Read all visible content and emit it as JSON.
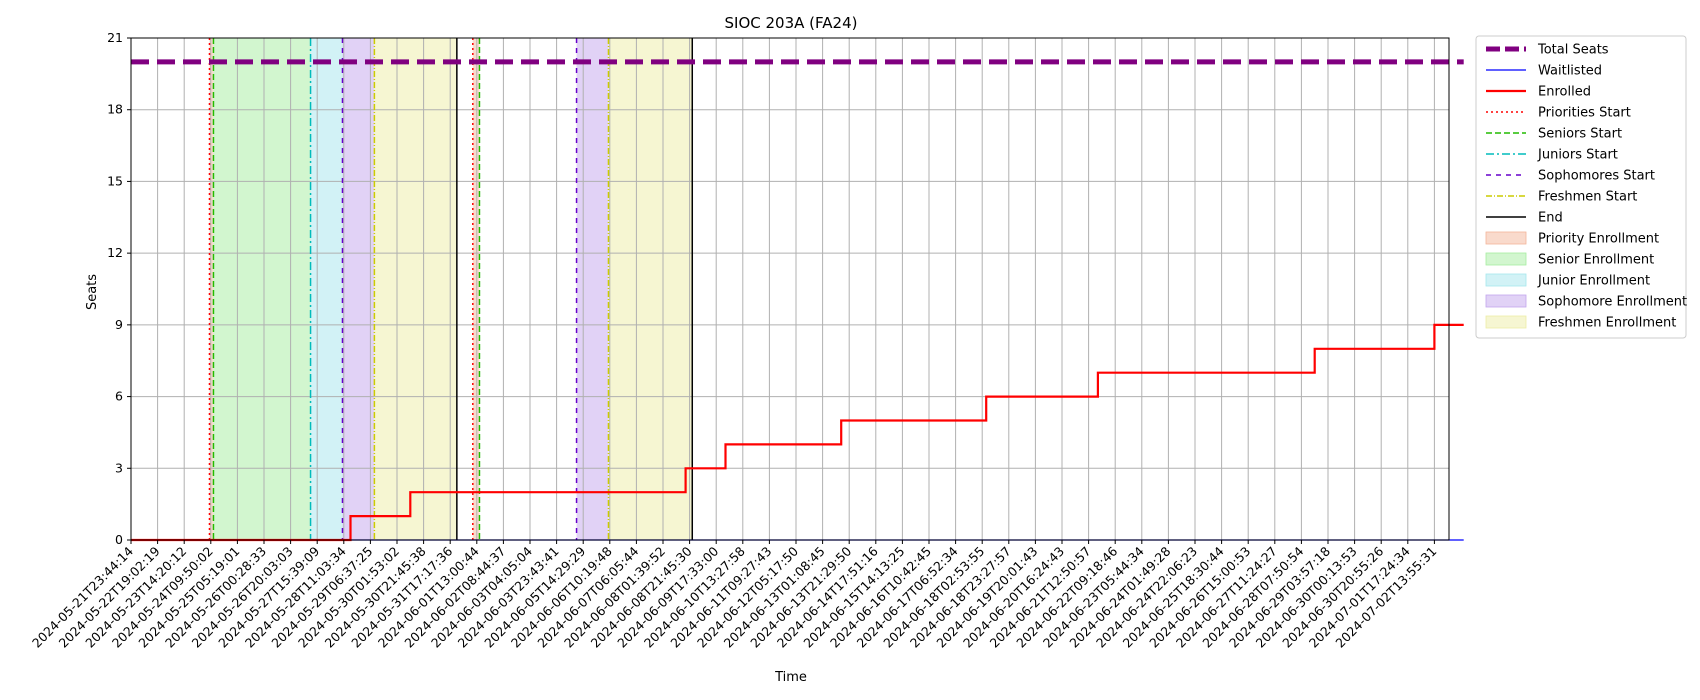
{
  "chart_data": {
    "type": "line",
    "title": "SIOC 203A (FA24)",
    "xlabel": "Time",
    "ylabel": "Seats",
    "ylim": [
      0,
      21
    ],
    "yticks": [
      0,
      3,
      6,
      9,
      12,
      15,
      18,
      21
    ],
    "grid": true,
    "legend_position": "outside-right",
    "x_tick_labels": [
      "2024-05-21T23:44:14",
      "2024-05-22T19:02:19",
      "2024-05-23T14:20:12",
      "2024-05-24T09:50:02",
      "2024-05-25T05:19:01",
      "2024-05-26T00:28:33",
      "2024-05-26T20:03:03",
      "2024-05-27T15:39:09",
      "2024-05-28T11:03:34",
      "2024-05-29T06:37:25",
      "2024-05-30T01:53:02",
      "2024-05-30T21:45:38",
      "2024-05-31T17:17:36",
      "2024-06-01T13:00:44",
      "2024-06-02T08:44:37",
      "2024-06-03T04:05:04",
      "2024-06-03T23:43:41",
      "2024-06-05T14:29:29",
      "2024-06-06T10:19:48",
      "2024-06-07T06:05:44",
      "2024-06-08T01:39:52",
      "2024-06-08T21:45:30",
      "2024-06-09T17:33:00",
      "2024-06-10T13:27:58",
      "2024-06-11T09:27:43",
      "2024-06-12T05:17:50",
      "2024-06-13T01:08:45",
      "2024-06-13T21:29:50",
      "2024-06-14T17:51:16",
      "2024-06-15T14:13:25",
      "2024-06-16T10:42:45",
      "2024-06-17T06:52:34",
      "2024-06-18T02:53:55",
      "2024-06-18T23:27:57",
      "2024-06-19T20:01:43",
      "2024-06-20T16:24:43",
      "2024-06-21T12:50:57",
      "2024-06-22T09:18:46",
      "2024-06-23T05:44:34",
      "2024-06-24T01:49:28",
      "2024-06-24T22:06:23",
      "2024-06-25T18:30:44",
      "2024-06-26T15:00:53",
      "2024-06-27T11:24:27",
      "2024-06-28T07:50:54",
      "2024-06-29T03:57:18",
      "2024-06-30T00:13:53",
      "2024-06-30T20:55:26",
      "2024-07-01T17:24:34",
      "2024-07-02T13:55:31"
    ],
    "x_span_ticks": [
      0,
      50.1
    ],
    "series": [
      {
        "name": "Total Seats",
        "style": "dashed-thick",
        "color": "#800080",
        "points": [
          [
            0,
            20
          ],
          [
            50.1,
            20
          ]
        ]
      },
      {
        "name": "Waitlisted",
        "style": "solid",
        "color": "#0000ff",
        "points": [
          [
            0,
            0
          ],
          [
            50.1,
            0
          ]
        ]
      },
      {
        "name": "Enrolled",
        "style": "step",
        "color": "#ff0000",
        "points": [
          [
            0,
            0
          ],
          [
            8.25,
            0
          ],
          [
            8.25,
            1
          ],
          [
            10.5,
            1
          ],
          [
            10.5,
            2
          ],
          [
            20.85,
            2
          ],
          [
            20.85,
            3
          ],
          [
            22.35,
            3
          ],
          [
            22.35,
            4
          ],
          [
            26.7,
            4
          ],
          [
            26.7,
            5
          ],
          [
            32.15,
            5
          ],
          [
            32.15,
            6
          ],
          [
            36.35,
            6
          ],
          [
            36.35,
            7
          ],
          [
            44.5,
            7
          ],
          [
            44.5,
            8
          ],
          [
            49.0,
            8
          ],
          [
            49.0,
            9
          ],
          [
            50.1,
            9
          ]
        ]
      }
    ],
    "event_lines": [
      {
        "name": "Priorities Start",
        "color": "#ff0000",
        "dash": "2,3",
        "x": [
          2.95,
          12.85
        ]
      },
      {
        "name": "Seniors Start",
        "color": "#22bb00",
        "dash": "6,3",
        "x": [
          3.1,
          13.1
        ]
      },
      {
        "name": "Juniors Start",
        "color": "#00bbbb",
        "dash": "8,3,2,3",
        "x": [
          6.75
        ]
      },
      {
        "name": "Sophomores Start",
        "color": "#6600cc",
        "dash": "5,5",
        "x": [
          7.95,
          16.75
        ]
      },
      {
        "name": "Freshmen Start",
        "color": "#cccc00",
        "dash": "6,2,1,2",
        "x": [
          9.15,
          17.95
        ]
      },
      {
        "name": "End",
        "color": "#000000",
        "dash": "",
        "x": [
          12.25,
          21.1
        ]
      }
    ],
    "regions": [
      {
        "name": "Priority Enrollment",
        "color": "#f4b59a",
        "spans": [
          [
            2.95,
            3.1
          ],
          [
            12.85,
            13.1
          ]
        ]
      },
      {
        "name": "Senior Enrollment",
        "color": "#a6eea0",
        "spans": [
          [
            3.1,
            6.75
          ]
        ]
      },
      {
        "name": "Junior Enrollment",
        "color": "#a6e6ee",
        "spans": [
          [
            6.75,
            7.95
          ]
        ]
      },
      {
        "name": "Sophomore Enrollment",
        "color": "#c3a6ee",
        "spans": [
          [
            7.95,
            9.15
          ],
          [
            16.75,
            17.95
          ]
        ]
      },
      {
        "name": "Freshmen Enrollment",
        "color": "#eeeea6",
        "spans": [
          [
            9.15,
            12.25
          ],
          [
            17.95,
            21.1
          ]
        ]
      }
    ]
  }
}
